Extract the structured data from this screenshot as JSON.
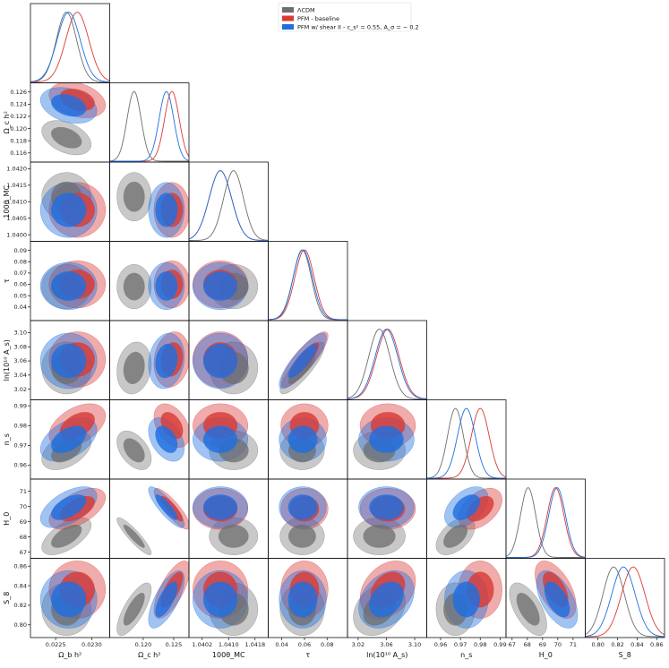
{
  "chart_data": {
    "type": "corner",
    "parameters": [
      {
        "key": "omegab",
        "label": "Ω_b h²",
        "range": [
          0.02215,
          0.02325
        ],
        "ticks": [
          0.0225,
          0.023
        ],
        "tick_labels": [
          "0.0225",
          "0.0230"
        ]
      },
      {
        "key": "omegac",
        "label": "Ω_c h²",
        "range": [
          0.1145,
          0.1275
        ],
        "ticks": [
          0.116,
          0.118,
          0.12,
          0.122,
          0.124,
          0.126
        ],
        "tick_labels": [
          "0.116",
          "0.118",
          "0.120",
          "0.122",
          "0.124",
          "0.126"
        ],
        "x_ticks": [
          0.12,
          0.125
        ],
        "x_tick_labels": [
          "0.120",
          "0.125"
        ]
      },
      {
        "key": "theta",
        "label": "100θ_MC",
        "range": [
          1.0398,
          1.0422
        ],
        "ticks": [
          1.04,
          1.0405,
          1.041,
          1.0415,
          1.042
        ],
        "tick_labels": [
          "1.0400",
          "1.0405",
          "1.0410",
          "1.0415",
          "1.0420"
        ],
        "x_ticks": [
          1.0402,
          1.041,
          1.0418
        ],
        "x_tick_labels": [
          "1.0402",
          "1.0410",
          "1.0418"
        ]
      },
      {
        "key": "tau",
        "label": "τ",
        "range": [
          0.028,
          0.098
        ],
        "ticks": [
          0.04,
          0.05,
          0.06,
          0.07,
          0.08,
          0.09
        ],
        "tick_labels": [
          "0.04",
          "0.05",
          "0.06",
          "0.07",
          "0.08",
          "0.09"
        ],
        "x_ticks": [
          0.04,
          0.06,
          0.08
        ],
        "x_tick_labels": [
          "0.04",
          "0.06",
          "0.08"
        ]
      },
      {
        "key": "logA",
        "label": "ln(10¹⁰ A_s)",
        "range": [
          3.005,
          3.117
        ],
        "ticks": [
          3.02,
          3.04,
          3.06,
          3.08,
          3.1
        ],
        "tick_labels": [
          "3.02",
          "3.04",
          "3.06",
          "3.08",
          "3.10"
        ],
        "x_ticks": [
          3.02,
          3.06,
          3.1
        ],
        "x_tick_labels": [
          "3.02",
          "3.06",
          "3.10"
        ]
      },
      {
        "key": "ns",
        "label": "n_s",
        "range": [
          0.953,
          0.993
        ],
        "ticks": [
          0.96,
          0.97,
          0.98,
          0.99
        ],
        "tick_labels": [
          "0.96",
          "0.97",
          "0.98",
          "0.99"
        ]
      },
      {
        "key": "H0",
        "label": "H_0",
        "range": [
          66.6,
          71.8
        ],
        "ticks": [
          67,
          68,
          69,
          70,
          71
        ],
        "tick_labels": [
          "67",
          "68",
          "69",
          "70",
          "71"
        ]
      },
      {
        "key": "S8",
        "label": "S_8",
        "range": [
          0.787,
          0.868
        ],
        "ticks": [
          0.8,
          0.82,
          0.84,
          0.86
        ],
        "tick_labels": [
          "0.80",
          "0.82",
          "0.84",
          "0.86"
        ]
      }
    ],
    "legend": {
      "placement": "top-center",
      "entries": [
        "ΛCDM",
        "PFM - baseline",
        "PFM w/ shear II - c_s² = 0.55, A_σ = − 0.2"
      ]
    },
    "series": [
      {
        "name": "ΛCDM",
        "color": "#6e6e6e",
        "mean": [
          0.02265,
          0.1185,
          1.04115,
          0.058,
          3.05,
          0.9675,
          68.05,
          0.816
        ],
        "sigma": [
          0.00014,
          0.00115,
          0.0003,
          0.008,
          0.015,
          0.004,
          0.5,
          0.011
        ],
        "corr": [
          [
            "omegab",
            "omegac",
            -0.4
          ],
          [
            "omegab",
            "ns",
            0.45
          ],
          [
            "omegab",
            "H0",
            0.6
          ],
          [
            "omegac",
            "H0",
            -0.9
          ],
          [
            "omegac",
            "ns",
            -0.45
          ],
          [
            "omegac",
            "S8",
            0.75
          ],
          [
            "tau",
            "logA",
            0.85
          ],
          [
            "ns",
            "H0",
            0.5
          ],
          [
            "H0",
            "S8",
            -0.6
          ],
          [
            "logA",
            "S8",
            0.3
          ],
          [
            "omegac",
            "logA",
            0.15
          ]
        ]
      },
      {
        "name": "PFM - baseline",
        "color": "#d93a36",
        "mean": [
          0.0228,
          0.1247,
          1.04075,
          0.06,
          3.062,
          0.98,
          69.85,
          0.836
        ],
        "sigma": [
          0.00016,
          0.0012,
          0.00034,
          0.0085,
          0.016,
          0.0045,
          0.55,
          0.012
        ],
        "corr": [
          [
            "omegab",
            "omegac",
            -0.3
          ],
          [
            "omegab",
            "ns",
            0.45
          ],
          [
            "omegab",
            "H0",
            0.55
          ],
          [
            "omegac",
            "H0",
            -0.85
          ],
          [
            "omegac",
            "ns",
            -0.4
          ],
          [
            "omegac",
            "S8",
            0.7
          ],
          [
            "tau",
            "logA",
            0.85
          ],
          [
            "ns",
            "H0",
            0.45
          ],
          [
            "H0",
            "S8",
            -0.55
          ],
          [
            "logA",
            "S8",
            0.3
          ],
          [
            "omegac",
            "logA",
            0.15
          ]
        ]
      },
      {
        "name": "PFM w/ shear II - c_s² = 0.55, A_σ = − 0.2",
        "color": "#1f6fe0",
        "mean": [
          0.02268,
          0.1238,
          1.04075,
          0.0585,
          3.06,
          0.973,
          69.95,
          0.826
        ],
        "sigma": [
          0.00016,
          0.0012,
          0.00034,
          0.0085,
          0.016,
          0.0045,
          0.55,
          0.012
        ],
        "corr": [
          [
            "omegab",
            "omegac",
            -0.3
          ],
          [
            "omegab",
            "ns",
            0.45
          ],
          [
            "omegab",
            "H0",
            0.55
          ],
          [
            "omegac",
            "H0",
            -0.85
          ],
          [
            "omegac",
            "ns",
            -0.4
          ],
          [
            "omegac",
            "S8",
            0.7
          ],
          [
            "tau",
            "logA",
            0.85
          ],
          [
            "ns",
            "H0",
            0.45
          ],
          [
            "H0",
            "S8",
            -0.55
          ],
          [
            "logA",
            "S8",
            0.3
          ],
          [
            "omegac",
            "logA",
            0.15
          ]
        ]
      }
    ]
  }
}
